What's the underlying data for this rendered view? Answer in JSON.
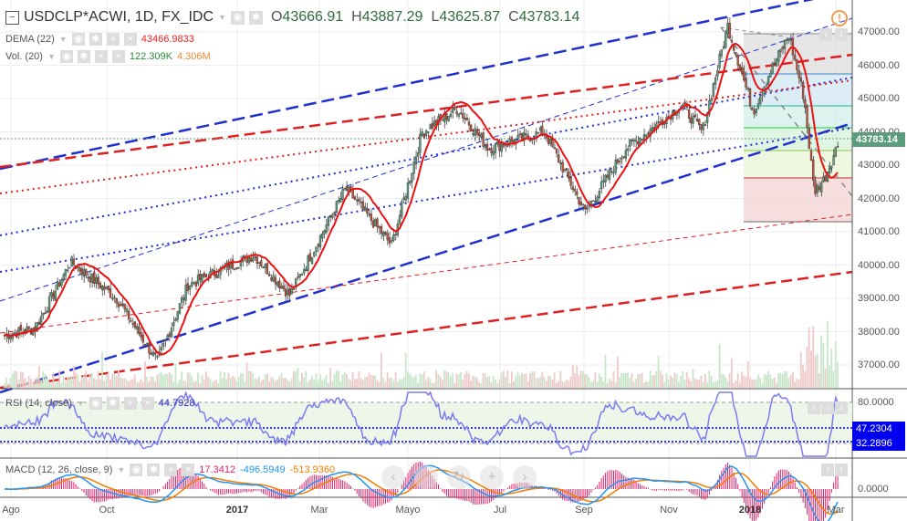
{
  "header": {
    "symbol": "USDCLP*ACWI, 1D, FX_IDC",
    "open_label": "O",
    "open": "43666.91",
    "high_label": "H",
    "high": "43887.29",
    "low_label": "L",
    "low": "43625.87",
    "close_label": "C",
    "close": "43783.14"
  },
  "indicators": {
    "dema": {
      "label": "DEMA (22)",
      "value": "43466.9833"
    },
    "vol": {
      "label": "Vol. (20)",
      "value1": "122.309K",
      "value2": "4.306M"
    },
    "rsi": {
      "label": "RSI (14, close)",
      "value": "44.7928",
      "tag1": "47.2304",
      "tag2": "32.2896",
      "level": "80.0000"
    },
    "macd": {
      "label": "MACD (12, 26, close, 9)",
      "hist": "17.3412",
      "macd": "-496.5949",
      "signal": "-513.9360",
      "zero": "0.0000"
    }
  },
  "price_axis": [
    "47000.00",
    "46000.00",
    "45000.00",
    "44000.00",
    "43000.00",
    "42000.00",
    "41000.00",
    "40000.00",
    "39000.00",
    "38000.00",
    "37000.00"
  ],
  "last_price": "43783.14",
  "time_axis": [
    {
      "label": "Ago"
    },
    {
      "label": "Oct"
    },
    {
      "label": "2017",
      "year": true
    },
    {
      "label": "Mar"
    },
    {
      "label": "Mayo"
    },
    {
      "label": "Jul"
    },
    {
      "label": "Sep"
    },
    {
      "label": "Nov"
    },
    {
      "label": "2018",
      "year": true
    },
    {
      "label": "Mar"
    }
  ],
  "nav": [
    "‹",
    "−",
    "↻",
    "+",
    "›"
  ],
  "colors": {
    "up": "#5b9c7c",
    "down": "#c0503a",
    "dema": "#ee1111",
    "rsi": "#7b7bf0",
    "tag": "#0000ee",
    "last": "#5b9c7c"
  },
  "chart_data": {
    "type": "candlestick",
    "keypoints": [
      [
        0,
        37900
      ],
      [
        6,
        38100
      ],
      [
        13,
        40100
      ],
      [
        22,
        39000
      ],
      [
        30,
        37100
      ],
      [
        36,
        39400
      ],
      [
        49,
        40300
      ],
      [
        56,
        39100
      ],
      [
        67,
        42300
      ],
      [
        76,
        40600
      ],
      [
        82,
        44000
      ],
      [
        89,
        44700
      ],
      [
        95,
        43500
      ],
      [
        106,
        44000
      ],
      [
        114,
        41600
      ],
      [
        122,
        43500
      ],
      [
        133,
        44800
      ],
      [
        137,
        44000
      ],
      [
        142,
        47200
      ],
      [
        147,
        44600
      ],
      [
        150,
        45700
      ],
      [
        154,
        46900
      ],
      [
        157,
        45000
      ],
      [
        159,
        42200
      ],
      [
        161,
        42600
      ],
      [
        164,
        43780
      ]
    ],
    "ylim": [
      36500,
      47300
    ]
  }
}
